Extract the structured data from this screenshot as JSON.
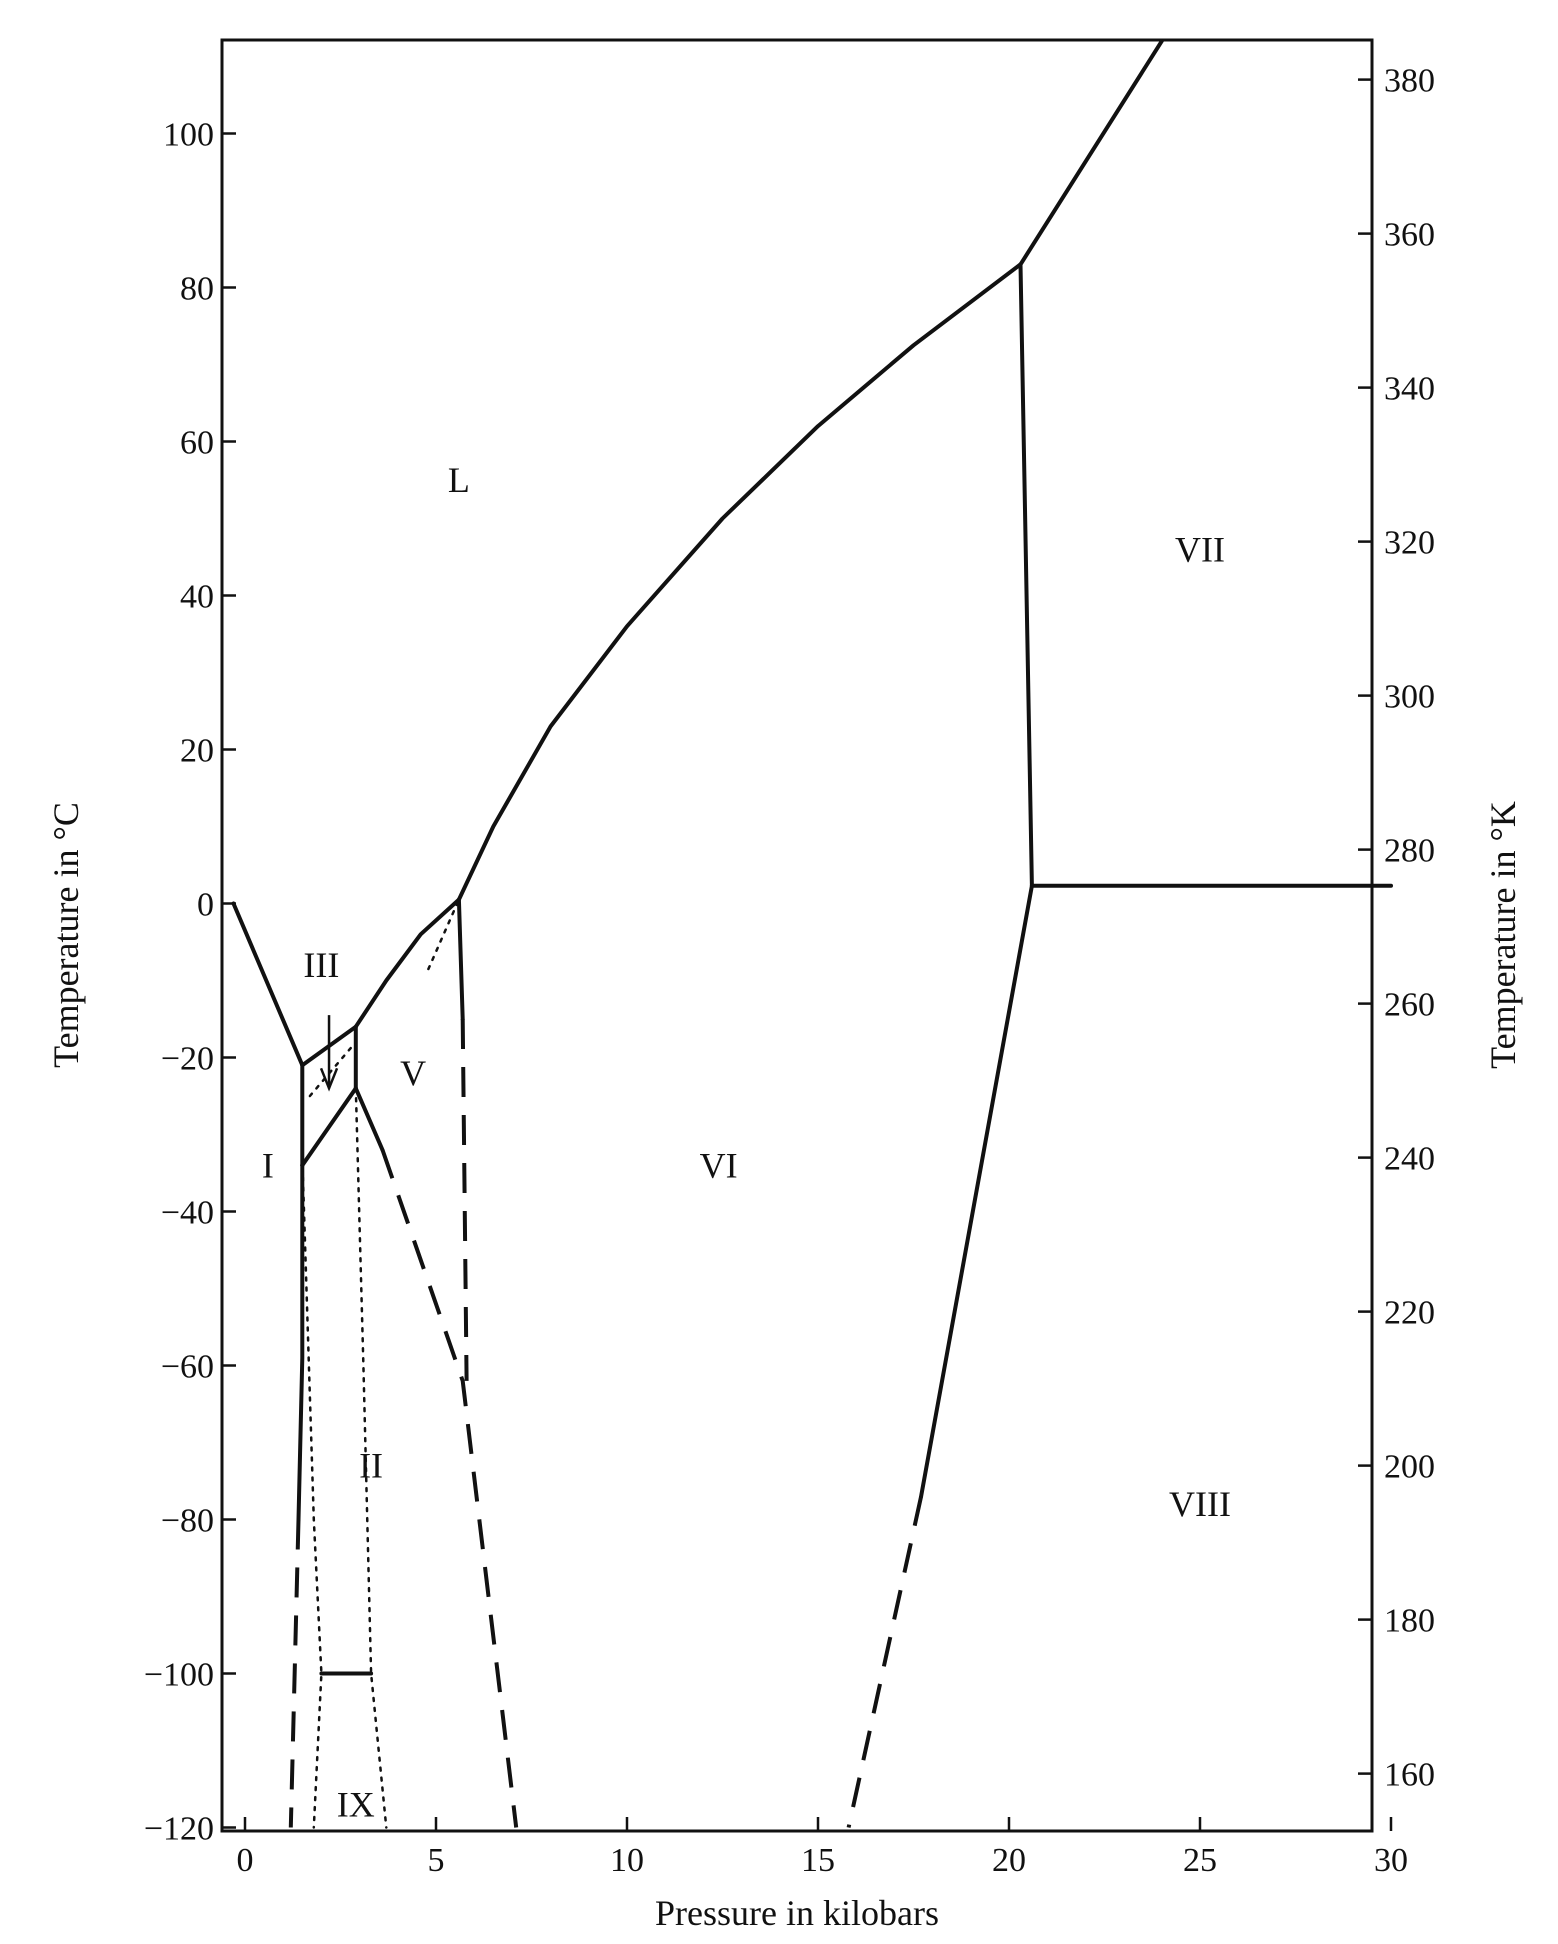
{
  "chart_data": {
    "type": "line",
    "title": "",
    "xlabel": "Pressure in kilobars",
    "ylabel": "Temperature in °C",
    "ylabel_right": "Temperature in °K",
    "xlim": [
      0,
      30
    ],
    "ylim": [
      -120,
      112
    ],
    "ylim_right_K": [
      153,
      385
    ],
    "grid": false,
    "x_ticks": [
      0,
      5,
      10,
      15,
      20,
      25,
      30
    ],
    "x_tick_labels": [
      "0",
      "5",
      "10",
      "15",
      "20",
      "25",
      "30"
    ],
    "y_ticks": [
      -120,
      -100,
      -80,
      -60,
      -40,
      -20,
      0,
      20,
      40,
      60,
      80,
      100
    ],
    "y_tick_labels": [
      "−120",
      "−100",
      "−80",
      "−60",
      "−40",
      "−20",
      "0",
      "20",
      "40",
      "60",
      "80",
      "100"
    ],
    "y_right_ticks_K": [
      160,
      180,
      200,
      220,
      240,
      260,
      280,
      300,
      320,
      340,
      360,
      380
    ],
    "y_right_tick_labels": [
      "160",
      "180",
      "200",
      "220",
      "240",
      "260",
      "280",
      "300",
      "320",
      "340",
      "360",
      "380"
    ],
    "series": [
      {
        "style": "solid",
        "points": [
          [
            -0.3,
            0
          ],
          [
            1.5,
            -21
          ]
        ]
      },
      {
        "style": "solid",
        "points": [
          [
            1.5,
            -21
          ],
          [
            2.9,
            -16
          ]
        ]
      },
      {
        "style": "solid",
        "points": [
          [
            2.9,
            -16
          ],
          [
            3.7,
            -10
          ],
          [
            4.6,
            -4
          ],
          [
            5.6,
            0.5
          ]
        ]
      },
      {
        "style": "solid",
        "points": [
          [
            5.6,
            0.5
          ],
          [
            6.5,
            10
          ],
          [
            8,
            23
          ],
          [
            10,
            36
          ],
          [
            12.5,
            50
          ],
          [
            15,
            62
          ],
          [
            17.5,
            72.5
          ],
          [
            20.3,
            83
          ]
        ]
      },
      {
        "style": "solid",
        "points": [
          [
            20.3,
            83
          ],
          [
            24,
            112
          ]
        ]
      },
      {
        "style": "solid",
        "points": [
          [
            20.3,
            83
          ],
          [
            20.6,
            2.3
          ]
        ]
      },
      {
        "style": "solid",
        "points": [
          [
            20.6,
            2.3
          ],
          [
            30,
            2.3
          ]
        ]
      },
      {
        "style": "solid",
        "points": [
          [
            20.6,
            2.3
          ],
          [
            17.7,
            -77
          ]
        ]
      },
      {
        "style": "dashed",
        "points": [
          [
            17.7,
            -77
          ],
          [
            15.8,
            -120
          ]
        ]
      },
      {
        "style": "solid",
        "points": [
          [
            1.5,
            -21
          ],
          [
            1.5,
            -34
          ]
        ]
      },
      {
        "style": "solid",
        "points": [
          [
            1.5,
            -34
          ],
          [
            2.9,
            -24
          ]
        ]
      },
      {
        "style": "solid",
        "points": [
          [
            2.9,
            -16
          ],
          [
            2.9,
            -24
          ]
        ]
      },
      {
        "style": "solid",
        "points": [
          [
            1.5,
            -34
          ],
          [
            1.5,
            -59
          ],
          [
            1.4,
            -80
          ]
        ]
      },
      {
        "style": "dashed",
        "points": [
          [
            1.4,
            -80
          ],
          [
            1.2,
            -120
          ]
        ]
      },
      {
        "style": "solid",
        "points": [
          [
            2.9,
            -24
          ],
          [
            3.6,
            -32
          ]
        ]
      },
      {
        "style": "dashed",
        "points": [
          [
            3.6,
            -32
          ],
          [
            5.7,
            -62
          ],
          [
            7.1,
            -120
          ]
        ]
      },
      {
        "style": "solid",
        "points": [
          [
            5.6,
            0.5
          ],
          [
            5.7,
            -15
          ]
        ]
      },
      {
        "style": "dashed",
        "points": [
          [
            5.7,
            -15
          ],
          [
            5.8,
            -62
          ]
        ]
      },
      {
        "style": "solid",
        "points": [
          [
            2.0,
            -100
          ],
          [
            3.3,
            -100
          ]
        ]
      },
      {
        "style": "dotted",
        "points": [
          [
            1.5,
            -33
          ],
          [
            1.8,
            -80
          ],
          [
            2.0,
            -100
          ],
          [
            1.8,
            -120
          ]
        ]
      },
      {
        "style": "dotted",
        "points": [
          [
            2.9,
            -24
          ],
          [
            3.1,
            -60
          ],
          [
            3.3,
            -100
          ],
          [
            3.7,
            -120
          ]
        ]
      },
      {
        "style": "dotted",
        "points": [
          [
            1.7,
            -25
          ],
          [
            2.9,
            -18
          ]
        ]
      },
      {
        "style": "dotted",
        "points": [
          [
            4.8,
            -8.5
          ],
          [
            5.6,
            0.5
          ]
        ]
      }
    ],
    "annotations": [
      "L",
      "VII",
      "VI",
      "VIII",
      "III",
      "V",
      "I",
      "II",
      "IX"
    ],
    "region_positions": [
      {
        "label": "L",
        "x": 5.6,
        "y": 55
      },
      {
        "label": "VII",
        "x": 25,
        "y": 46
      },
      {
        "label": "VI",
        "x": 12.4,
        "y": -34
      },
      {
        "label": "VIII",
        "x": 25,
        "y": -78
      },
      {
        "label": "III",
        "x": 2.0,
        "y": -8
      },
      {
        "label": "V",
        "x": 4.4,
        "y": -22
      },
      {
        "label": "I",
        "x": 0.6,
        "y": -34
      },
      {
        "label": "II",
        "x": 3.3,
        "y": -73
      },
      {
        "label": "IX",
        "x": 2.9,
        "y": -117
      }
    ],
    "arrow": {
      "from": [
        2.2,
        -14.5
      ],
      "to": [
        2.2,
        -24
      ]
    }
  }
}
